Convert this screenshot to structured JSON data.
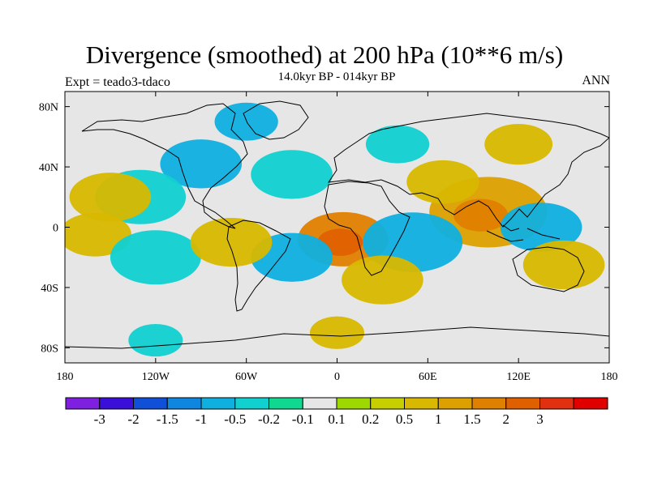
{
  "header": {
    "title": "Divergence (smoothed) at 200 hPa (10**6 m/s)",
    "subtitle": "14.0kyr BP - 014kyr BP",
    "left_label": "Expt = teado3-tdaco",
    "right_label": "ANN"
  },
  "axes": {
    "lat_ticks": [
      "80N",
      "40N",
      "0",
      "40S",
      "80S"
    ],
    "lon_ticks": [
      "180",
      "120W",
      "60W",
      "0",
      "60E",
      "120E",
      "180"
    ]
  },
  "colorbar": {
    "colors": [
      "#7f1fe0",
      "#3a10d8",
      "#1050d8",
      "#0f86e0",
      "#0fb0e0",
      "#10d0d0",
      "#10d890",
      "#e6e6e6",
      "#9ed800",
      "#c6d000",
      "#d8b800",
      "#dca000",
      "#e08000",
      "#e06000",
      "#e03010",
      "#e00000"
    ],
    "labels": [
      "-3",
      "-2",
      "-1.5",
      "-1",
      "-0.5",
      "-0.2",
      "-0.1",
      "0.1",
      "0.2",
      "0.5",
      "1",
      "1.5",
      "2",
      "3"
    ]
  },
  "field_blobs": [
    {
      "lon": 4,
      "lat": -8,
      "r": 20,
      "level": 1.5
    },
    {
      "lon": 2,
      "lat": -10,
      "r": 10,
      "level": 2
    },
    {
      "lon": 100,
      "lat": 10,
      "r": 26,
      "level": 1
    },
    {
      "lon": 95,
      "lat": 8,
      "r": 12,
      "level": 1.5
    },
    {
      "lon": 135,
      "lat": 0,
      "r": 18,
      "level": -1
    },
    {
      "lon": 50,
      "lat": -10,
      "r": 22,
      "level": -1
    },
    {
      "lon": 70,
      "lat": 30,
      "r": 16,
      "level": 0.5
    },
    {
      "lon": -30,
      "lat": 35,
      "r": 18,
      "level": -0.5
    },
    {
      "lon": -90,
      "lat": 42,
      "r": 18,
      "level": -1
    },
    {
      "lon": -130,
      "lat": 20,
      "r": 20,
      "level": -0.5
    },
    {
      "lon": -150,
      "lat": 20,
      "r": 18,
      "level": 0.5
    },
    {
      "lon": -160,
      "lat": -5,
      "r": 16,
      "level": 0.5
    },
    {
      "lon": -120,
      "lat": -20,
      "r": 20,
      "level": -0.5
    },
    {
      "lon": -30,
      "lat": -20,
      "r": 18,
      "level": -1
    },
    {
      "lon": -70,
      "lat": -10,
      "r": 18,
      "level": 0.5
    },
    {
      "lon": 30,
      "lat": -35,
      "r": 18,
      "level": 0.5
    },
    {
      "lon": 150,
      "lat": -25,
      "r": 18,
      "level": 0.5
    },
    {
      "lon": 120,
      "lat": 55,
      "r": 15,
      "level": 0.5
    },
    {
      "lon": 40,
      "lat": 55,
      "r": 14,
      "level": -0.5
    },
    {
      "lon": -60,
      "lat": 70,
      "r": 14,
      "level": -1
    },
    {
      "lon": 0,
      "lat": -70,
      "r": 12,
      "level": 0.5
    },
    {
      "lon": -120,
      "lat": -75,
      "r": 12,
      "level": -0.5
    }
  ]
}
